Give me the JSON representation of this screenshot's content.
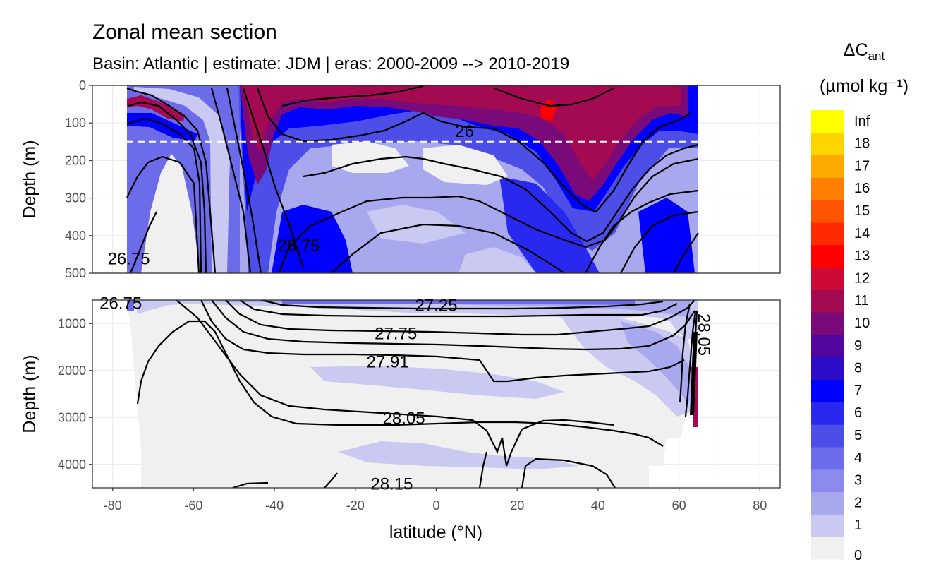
{
  "chart_data": {
    "type": "heatmap",
    "title": "Zonal mean section",
    "subtitle": "Basin: Atlantic | estimate: JDM  | eras: 2000-2009 --> 2010-2019",
    "xlabel": "latitude (°N)",
    "ylabel": "Depth (m)",
    "xlim": [
      -85,
      85
    ],
    "x_ticks": [
      -80,
      -60,
      -40,
      -20,
      0,
      20,
      40,
      60,
      80
    ],
    "x_tick_labels": [
      "-80",
      "-60",
      "-40",
      "-20",
      "0",
      "20",
      "40",
      "60",
      "80"
    ],
    "panels": [
      {
        "name": "upper",
        "ylim": [
          500,
          0
        ],
        "y_ticks": [
          0,
          100,
          200,
          300,
          400,
          500
        ],
        "y_tick_labels": [
          "0",
          "100",
          "200",
          "300",
          "400",
          "500"
        ]
      },
      {
        "name": "lower",
        "ylim": [
          4500,
          500
        ],
        "y_ticks": [
          1000,
          2000,
          3000,
          4000
        ],
        "y_tick_labels": [
          "1000",
          "2000",
          "3000",
          "4000"
        ]
      }
    ],
    "reference_depth_m": 150,
    "legend": {
      "title_main": "ΔC",
      "title_sub": "ant",
      "unit": "(µmol kg⁻¹)",
      "placement": "right",
      "labels": [
        "0",
        "1",
        "2",
        "3",
        "4",
        "5",
        "6",
        "7",
        "8",
        "9",
        "10",
        "11",
        "12",
        "13",
        "14",
        "15",
        "16",
        "17",
        "18",
        "Inf"
      ],
      "colors": [
        "#f0f0f0",
        "#c9c9f2",
        "#a8a8ef",
        "#8a8aec",
        "#6c6cea",
        "#4d4de8",
        "#2828ee",
        "#0000ff",
        "#2d0cc8",
        "#52069e",
        "#7a0a7a",
        "#a30a52",
        "#cc0a35",
        "#ff0000",
        "#ff2a00",
        "#ff5500",
        "#ff8000",
        "#ffaa00",
        "#ffd500",
        "#ffff00"
      ]
    },
    "isopycnal_labels": [
      {
        "text": "26",
        "x": 7,
        "depth": 120,
        "panel": "upper"
      },
      {
        "text": "26.75",
        "x": -34,
        "depth": 425,
        "panel": "upper"
      },
      {
        "text": "26.75",
        "x": -76,
        "depth": 460,
        "panel": "upper"
      },
      {
        "text": "26.75",
        "x": -78,
        "depth": 550,
        "panel": "lower"
      },
      {
        "text": "27.25",
        "x": 0,
        "depth": 600,
        "panel": "lower"
      },
      {
        "text": "27.75",
        "x": -10,
        "depth": 1200,
        "panel": "lower"
      },
      {
        "text": "27.91",
        "x": -12,
        "depth": 1800,
        "panel": "lower"
      },
      {
        "text": "28.05",
        "x": -8,
        "depth": 3000,
        "panel": "lower"
      },
      {
        "text": "28.15",
        "x": -11,
        "depth": 4400,
        "panel": "lower"
      }
    ]
  }
}
